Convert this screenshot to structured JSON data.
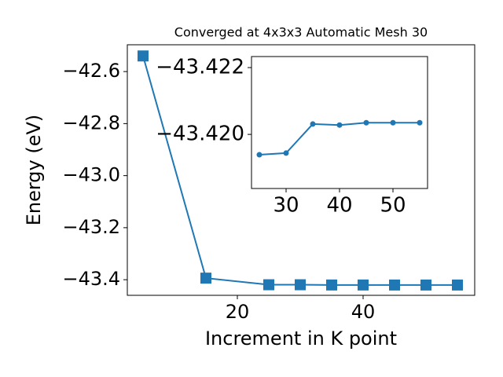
{
  "chart_data": [
    {
      "type": "line",
      "title": "Converged at 4x3x3 Automatic Mesh 30",
      "x_label": "Increment in K point",
      "y_label": "Energy (eV)",
      "x": [
        5,
        15,
        25,
        30,
        35,
        40,
        45,
        50,
        55
      ],
      "series": [
        {
          "color": "#1f77b4",
          "marker": "square",
          "values": [
            -42.54,
            -43.394,
            -43.4194,
            -43.4194,
            -43.4203,
            -43.4203,
            -43.4204,
            -43.4204,
            -43.4204
          ]
        }
      ],
      "xlim": [
        2.5,
        57.75
      ],
      "xticks": [
        20,
        40
      ],
      "ylim": [
        -43.46,
        -42.497
      ],
      "yticks": [
        {
          "value": -42.6,
          "label": "−42.6"
        },
        {
          "value": -42.8,
          "label": "−42.8"
        },
        {
          "value": -43.0,
          "label": "−43.0"
        },
        {
          "value": -43.2,
          "label": "−43.2"
        },
        {
          "value": -43.4,
          "label": "−43.4"
        }
      ]
    },
    {
      "type": "line",
      "x": [
        25,
        30,
        35,
        40,
        45,
        50,
        55
      ],
      "series": [
        {
          "color": "#1f77b4",
          "marker": "circle",
          "values": [
            -43.41939,
            -43.41944,
            -43.42031,
            -43.42028,
            -43.42035,
            -43.42035,
            -43.42035
          ]
        }
      ],
      "xlim": [
        23.53,
        56.47
      ],
      "xticks": [
        30,
        40,
        50
      ],
      "ylim": [
        -43.41838,
        -43.42233
      ],
      "yticks": [
        {
          "value": -43.422,
          "label": "−43.422"
        },
        {
          "value": -43.42,
          "label": "−43.420"
        }
      ]
    }
  ]
}
